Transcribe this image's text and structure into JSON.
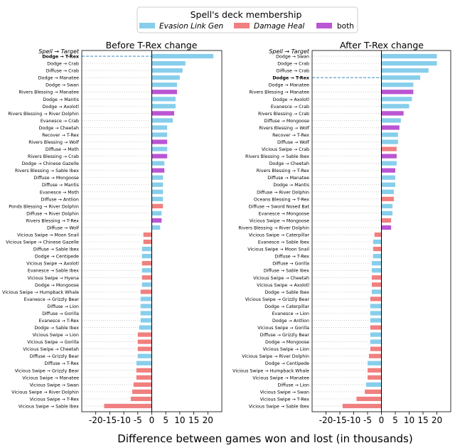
{
  "figure": {
    "xlabel": "Difference between games won and lost (in thousands)",
    "legend": {
      "title": "Spell's deck membership",
      "entries": [
        {
          "label": "Evasion Link Gen",
          "color": "#87ceeb"
        },
        {
          "label": "Damage Heal",
          "color": "#f08080"
        },
        {
          "label": "both",
          "color": "#ba55d3"
        }
      ]
    }
  },
  "chart_data": [
    {
      "type": "bar",
      "title": "Before T-Rex change",
      "header_label": "Spell → Target",
      "xlim": [
        -25,
        25
      ],
      "xticks": [
        -20,
        -15,
        -10,
        -5,
        0,
        5,
        10,
        15,
        20
      ],
      "xtick_labels": [
        "-20",
        "-15",
        "-10",
        "-5",
        "0",
        "5",
        "10",
        "15",
        "20"
      ],
      "highlight": "Dodge → T-Rex",
      "bars": [
        {
          "label": "Dodge → T-Rex",
          "value": 22,
          "group": "evasion"
        },
        {
          "label": "Dodge → Crab",
          "value": 12,
          "group": "evasion"
        },
        {
          "label": "Diffuse → Crab",
          "value": 11,
          "group": "evasion"
        },
        {
          "label": "Dodge → Manatee",
          "value": 10,
          "group": "evasion"
        },
        {
          "label": "Dodge → Swan",
          "value": 9,
          "group": "evasion"
        },
        {
          "label": "Rivers Blessing → Manatee",
          "value": 9,
          "group": "both"
        },
        {
          "label": "Dodge → Mantis",
          "value": 8.5,
          "group": "evasion"
        },
        {
          "label": "Dodge → Axolotl",
          "value": 8.5,
          "group": "evasion"
        },
        {
          "label": "Rivers Blessing → River Dolphin",
          "value": 8,
          "group": "both"
        },
        {
          "label": "Evanesce → Crab",
          "value": 7.5,
          "group": "evasion"
        },
        {
          "label": "Dodge → Cheetah",
          "value": 5.5,
          "group": "evasion"
        },
        {
          "label": "Recover → T-Rex",
          "value": 5.5,
          "group": "evasion"
        },
        {
          "label": "Rivers Blessing → Wolf",
          "value": 5.5,
          "group": "both"
        },
        {
          "label": "Diffuse → Moth",
          "value": 5.5,
          "group": "evasion"
        },
        {
          "label": "Rivers Blessing → Crab",
          "value": 5.5,
          "group": "both"
        },
        {
          "label": "Dodge → Chinese Gazelle",
          "value": 4.5,
          "group": "evasion"
        },
        {
          "label": "Rivers Blessing → Sable Ibex",
          "value": 4.5,
          "group": "both"
        },
        {
          "label": "Diffuse → Mongoose",
          "value": 4,
          "group": "evasion"
        },
        {
          "label": "Diffuse → Mantis",
          "value": 4,
          "group": "evasion"
        },
        {
          "label": "Evanesce → Moth",
          "value": 4,
          "group": "evasion"
        },
        {
          "label": "Diffuse → Antlion",
          "value": 4,
          "group": "evasion"
        },
        {
          "label": "Ponds Blessing → River Dolphin",
          "value": 4,
          "group": "damage"
        },
        {
          "label": "Diffuse → River Dolphin",
          "value": 3.5,
          "group": "evasion"
        },
        {
          "label": "Rivers Blessing → T-Rex",
          "value": 3.5,
          "group": "both"
        },
        {
          "label": "Diffuse → Wolf",
          "value": 3,
          "group": "evasion"
        },
        {
          "label": "Vicious Swipe → Moon Snail",
          "value": -3,
          "group": "damage"
        },
        {
          "label": "Vicious Swipe → Chinese Gazelle",
          "value": -3,
          "group": "damage"
        },
        {
          "label": "Diffuse → Sable Ibex",
          "value": -3.5,
          "group": "evasion"
        },
        {
          "label": "Dodge → Centipede",
          "value": -3.5,
          "group": "evasion"
        },
        {
          "label": "Vicious Swipe → Axolotl",
          "value": -3.5,
          "group": "damage"
        },
        {
          "label": "Evanesce → Sable Ibex",
          "value": -3.5,
          "group": "evasion"
        },
        {
          "label": "Vicious Swipe → Hyena",
          "value": -3.5,
          "group": "damage"
        },
        {
          "label": "Dodge → Mongoose",
          "value": -3.5,
          "group": "evasion"
        },
        {
          "label": "Vicious Swipe → Humpback Whale",
          "value": -4,
          "group": "damage"
        },
        {
          "label": "Evanesce → Grizzly Bear",
          "value": -4,
          "group": "evasion"
        },
        {
          "label": "Diffuse → Lion",
          "value": -4,
          "group": "evasion"
        },
        {
          "label": "Diffuse → Gorilla",
          "value": -4,
          "group": "evasion"
        },
        {
          "label": "Evanesce → T-Rex",
          "value": -4,
          "group": "evasion"
        },
        {
          "label": "Dodge → Sable Ibex",
          "value": -4.5,
          "group": "evasion"
        },
        {
          "label": "Vicious Swipe → Lion",
          "value": -5,
          "group": "damage"
        },
        {
          "label": "Vicious Swipe → Gorilla",
          "value": -5,
          "group": "damage"
        },
        {
          "label": "Vicious Swipe → Cheetah",
          "value": -5,
          "group": "damage"
        },
        {
          "label": "Diffuse → Grizzly Bear",
          "value": -5,
          "group": "evasion"
        },
        {
          "label": "Diffuse → T-Rex",
          "value": -5.5,
          "group": "evasion"
        },
        {
          "label": "Vicious Swipe → Grizzly Bear",
          "value": -5.5,
          "group": "damage"
        },
        {
          "label": "Vicious Swipe → Manatee",
          "value": -5.5,
          "group": "damage"
        },
        {
          "label": "Vicious Swipe → Swan",
          "value": -6.5,
          "group": "damage"
        },
        {
          "label": "Vicious Swipe → River Dolphin",
          "value": -7,
          "group": "damage"
        },
        {
          "label": "Vicious Swipe → T-Rex",
          "value": -7.5,
          "group": "damage"
        },
        {
          "label": "Vicious Swipe → Sable Ibex",
          "value": -17,
          "group": "damage"
        }
      ]
    },
    {
      "type": "bar",
      "title": "After T-Rex change",
      "header_label": "Spell → Target",
      "xlim": [
        -25,
        25
      ],
      "xticks": [
        -20,
        -15,
        -10,
        -5,
        0,
        5,
        10,
        15,
        20
      ],
      "xtick_labels": [
        "-20",
        "-15",
        "-10",
        "-5",
        "0",
        "5",
        "10",
        "15",
        "20"
      ],
      "highlight": "Dodge → T-Rex",
      "bars": [
        {
          "label": "Dodge → Swan",
          "value": 20,
          "group": "evasion"
        },
        {
          "label": "Dodge → Crab",
          "value": 20,
          "group": "evasion"
        },
        {
          "label": "Diffuse → Crab",
          "value": 17,
          "group": "evasion"
        },
        {
          "label": "Dodge → T-Rex",
          "value": 14,
          "group": "evasion"
        },
        {
          "label": "Dodge → Manatee",
          "value": 11.5,
          "group": "evasion"
        },
        {
          "label": "Rivers Blessing → Manatee",
          "value": 11.5,
          "group": "both"
        },
        {
          "label": "Dodge → Axolotl",
          "value": 11,
          "group": "evasion"
        },
        {
          "label": "Evanesce → Crab",
          "value": 10,
          "group": "evasion"
        },
        {
          "label": "Rivers Blessing → Crab",
          "value": 8,
          "group": "both"
        },
        {
          "label": "Diffuse → Mongoose",
          "value": 7,
          "group": "evasion"
        },
        {
          "label": "Rivers Blessing → Wolf",
          "value": 6.5,
          "group": "both"
        },
        {
          "label": "Recover → T-Rex",
          "value": 6,
          "group": "evasion"
        },
        {
          "label": "Diffuse → Wolf",
          "value": 6,
          "group": "evasion"
        },
        {
          "label": "Vicious Swipe → Crab",
          "value": 5.5,
          "group": "damage"
        },
        {
          "label": "Rivers Blessing → Sable Ibex",
          "value": 5.5,
          "group": "both"
        },
        {
          "label": "Dodge → Cheetah",
          "value": 5.5,
          "group": "evasion"
        },
        {
          "label": "Rivers Blessing → T-Rex",
          "value": 5,
          "group": "both"
        },
        {
          "label": "Diffuse → Manatee",
          "value": 5,
          "group": "evasion"
        },
        {
          "label": "Dodge → Mantis",
          "value": 5,
          "group": "evasion"
        },
        {
          "label": "Diffuse → River Dolphin",
          "value": 4.5,
          "group": "evasion"
        },
        {
          "label": "Oceans Blessing → T-Rex",
          "value": 4.5,
          "group": "damage"
        },
        {
          "label": "Diffuse → Sword Nosed Bat",
          "value": 4,
          "group": "evasion"
        },
        {
          "label": "Evanesce → Mongoose",
          "value": 4,
          "group": "evasion"
        },
        {
          "label": "Vicious Swipe → Mongoose",
          "value": 3.5,
          "group": "damage"
        },
        {
          "label": "Rivers Blessing → River Dolphin",
          "value": 3.5,
          "group": "both"
        },
        {
          "label": "Vicious Swipe → Caterpillar",
          "value": -2.5,
          "group": "damage"
        },
        {
          "label": "Evanesce → Sable Ibex",
          "value": -3,
          "group": "evasion"
        },
        {
          "label": "Vicious Swipe → Moon Snail",
          "value": -3,
          "group": "damage"
        },
        {
          "label": "Diffuse → T-Rex",
          "value": -3,
          "group": "evasion"
        },
        {
          "label": "Diffuse → Gorilla",
          "value": -3.5,
          "group": "evasion"
        },
        {
          "label": "Diffuse → Sable Ibex",
          "value": -3.5,
          "group": "evasion"
        },
        {
          "label": "Vicious Swipe → Cheetah",
          "value": -3.5,
          "group": "damage"
        },
        {
          "label": "Vicious Swipe → Axolotl",
          "value": -3.5,
          "group": "damage"
        },
        {
          "label": "Dodge → Sable Ibex",
          "value": -3.5,
          "group": "evasion"
        },
        {
          "label": "Vicious Swipe → Grizzly Bear",
          "value": -4,
          "group": "damage"
        },
        {
          "label": "Dodge → Caterpillar",
          "value": -4,
          "group": "evasion"
        },
        {
          "label": "Evanesce → Lion",
          "value": -4,
          "group": "evasion"
        },
        {
          "label": "Dodge → Antlion",
          "value": -4,
          "group": "evasion"
        },
        {
          "label": "Vicious Swipe → Gorilla",
          "value": -4,
          "group": "damage"
        },
        {
          "label": "Diffuse → Grizzly Bear",
          "value": -4,
          "group": "evasion"
        },
        {
          "label": "Dodge → Mongoose",
          "value": -4,
          "group": "evasion"
        },
        {
          "label": "Vicious Swipe → Lion",
          "value": -4,
          "group": "damage"
        },
        {
          "label": "Vicious Swipe → River Dolphin",
          "value": -4.5,
          "group": "damage"
        },
        {
          "label": "Dodge → Centipede",
          "value": -5,
          "group": "evasion"
        },
        {
          "label": "Vicious Swipe → Humpback Whale",
          "value": -5,
          "group": "damage"
        },
        {
          "label": "Vicious Swipe → Manatee",
          "value": -5,
          "group": "damage"
        },
        {
          "label": "Diffuse → Lion",
          "value": -5.5,
          "group": "evasion"
        },
        {
          "label": "Vicious Swipe → Swan",
          "value": -6,
          "group": "damage"
        },
        {
          "label": "Vicious Swipe → T-Rex",
          "value": -9,
          "group": "damage"
        },
        {
          "label": "Vicious Swipe → Sable Ibex",
          "value": -14,
          "group": "damage"
        }
      ]
    }
  ]
}
